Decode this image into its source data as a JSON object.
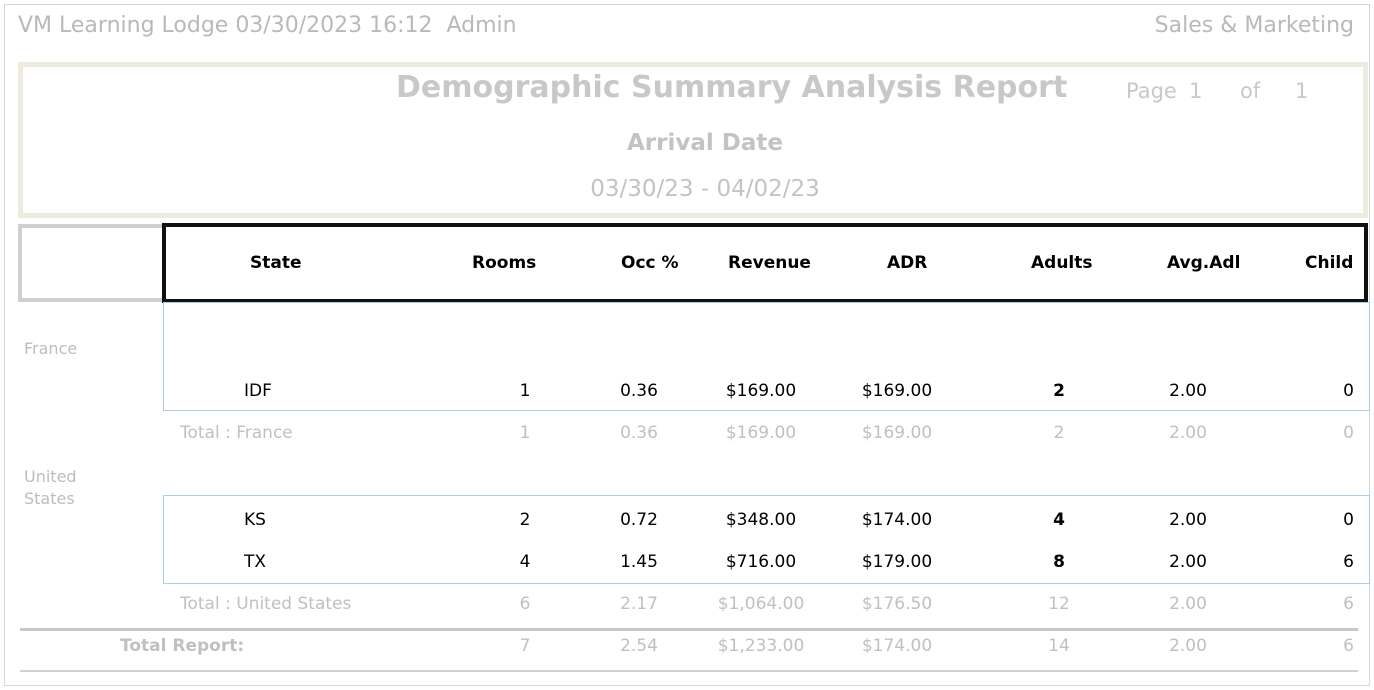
{
  "header": {
    "left": "VM Learning Lodge 03/30/2023 16:12  Admin",
    "right": "Sales & Marketing"
  },
  "report": {
    "title": "Demographic Summary Analysis Report",
    "page_label": "Page",
    "page_num": "1",
    "of_label": "of",
    "page_total": "1",
    "subtitle": "Arrival Date",
    "date_range": "03/30/23 - 04/02/23"
  },
  "columns": [
    "State",
    "Rooms",
    "Occ %",
    "Revenue",
    "ADR",
    "Adults",
    "Avg.Adl",
    "Child"
  ],
  "groups": [
    {
      "country": "France",
      "rows": [
        {
          "state": "IDF",
          "rooms": "1",
          "occ": "0.36",
          "revenue": "$169.00",
          "adr": "$169.00",
          "adults": "2",
          "avg_adl": "2.00",
          "child": "0"
        }
      ],
      "total": {
        "label": "Total : France",
        "rooms": "1",
        "occ": "0.36",
        "revenue": "$169.00",
        "adr": "$169.00",
        "adults": "2",
        "avg_adl": "2.00",
        "child": "0"
      }
    },
    {
      "country": "United States",
      "rows": [
        {
          "state": "KS",
          "rooms": "2",
          "occ": "0.72",
          "revenue": "$348.00",
          "adr": "$174.00",
          "adults": "4",
          "avg_adl": "2.00",
          "child": "0"
        },
        {
          "state": "TX",
          "rooms": "4",
          "occ": "1.45",
          "revenue": "$716.00",
          "adr": "$179.00",
          "adults": "8",
          "avg_adl": "2.00",
          "child": "6"
        }
      ],
      "total": {
        "label": "Total : United States",
        "rooms": "6",
        "occ": "2.17",
        "revenue": "$1,064.00",
        "adr": "$176.50",
        "adults": "12",
        "avg_adl": "2.00",
        "child": "6"
      }
    }
  ],
  "grand_total": {
    "label": "Total Report:",
    "rooms": "7",
    "occ": "2.54",
    "revenue": "$1,233.00",
    "adr": "$174.00",
    "adults": "14",
    "avg_adl": "2.00",
    "child": "6"
  },
  "colors": {
    "muted_text": "#c0c0c0",
    "title_border": "#ecebdd",
    "detail_border": "#a9d1e6",
    "header_border": "#111111"
  }
}
